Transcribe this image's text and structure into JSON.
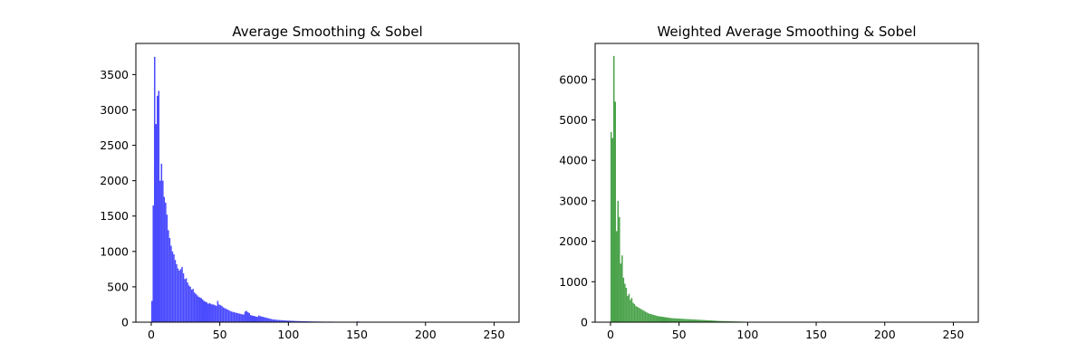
{
  "chart_data": [
    {
      "type": "bar",
      "title": "Average Smoothing & Sobel",
      "xlabel": "",
      "ylabel": "",
      "xlim": [
        -11.2,
        268.2
      ],
      "ylim": [
        0,
        3940
      ],
      "xticks": [
        0,
        50,
        100,
        150,
        200,
        250
      ],
      "yticks": [
        0,
        500,
        1000,
        1500,
        2000,
        2500,
        3000,
        3500
      ],
      "bar_color": "#4a4aff",
      "grid": false,
      "bins": {
        "start": 0,
        "width": 1,
        "counts": [
          300,
          1650,
          3750,
          2800,
          3200,
          3270,
          2000,
          2240,
          2000,
          1770,
          1690,
          1520,
          1300,
          1190,
          1080,
          1000,
          960,
          880,
          820,
          760,
          730,
          750,
          780,
          690,
          610,
          620,
          560,
          520,
          500,
          460,
          470,
          420,
          400,
          380,
          360,
          350,
          340,
          320,
          300,
          290,
          280,
          260,
          270,
          260,
          250,
          250,
          240,
          230,
          300,
          250,
          240,
          230,
          210,
          200,
          190,
          180,
          170,
          160,
          150,
          145,
          140,
          135,
          130,
          125,
          120,
          115,
          110,
          110,
          150,
          160,
          140,
          130,
          100,
          95,
          90,
          85,
          80,
          75,
          95,
          85,
          80,
          75,
          70,
          65,
          60,
          55,
          50,
          45,
          40,
          38,
          36,
          34,
          32,
          30,
          29,
          28,
          26,
          25,
          24,
          22,
          22,
          21,
          20,
          19,
          18,
          17,
          16,
          16,
          15,
          14,
          14,
          13,
          13,
          12,
          12,
          11,
          11,
          10,
          10,
          10,
          9,
          9,
          9,
          8,
          8,
          8,
          7,
          7,
          7,
          7,
          8,
          7,
          7,
          6,
          6,
          6,
          6,
          6,
          5,
          5,
          5,
          5,
          5,
          5,
          4,
          4,
          4,
          4,
          4,
          4,
          12,
          8,
          7,
          6,
          6,
          5,
          5,
          5,
          4,
          4,
          4,
          4,
          4,
          3,
          3,
          3,
          3,
          3,
          3,
          3,
          3,
          3,
          3,
          3,
          3,
          3,
          3,
          3,
          3,
          3,
          3,
          3,
          3,
          3,
          3,
          3,
          3,
          3,
          3,
          3,
          3,
          3,
          3,
          3,
          3,
          3,
          3,
          3,
          2,
          2,
          2,
          2,
          2,
          2,
          2,
          2,
          2,
          2,
          2,
          2,
          2,
          2,
          2,
          2,
          2,
          2,
          2,
          2,
          2,
          2,
          2,
          2,
          2,
          2,
          2,
          2,
          1,
          1,
          1,
          1,
          1,
          1,
          1,
          1,
          1,
          1,
          1,
          1,
          1,
          1,
          1,
          1,
          1,
          1,
          1,
          1,
          1,
          1,
          1,
          1,
          1,
          1,
          1,
          1,
          1,
          1,
          1,
          1,
          1,
          1,
          1,
          1,
          1
        ]
      }
    },
    {
      "type": "bar",
      "title": "Weighted Average Smoothing & Sobel",
      "xlabel": "",
      "ylabel": "",
      "xlim": [
        -11.2,
        268.2
      ],
      "ylim": [
        0,
        6890
      ],
      "xticks": [
        0,
        50,
        100,
        150,
        200,
        250
      ],
      "yticks": [
        0,
        1000,
        2000,
        3000,
        4000,
        5000,
        6000
      ],
      "bar_color": "#4ba34b",
      "grid": false,
      "bins": {
        "start": 0,
        "width": 1,
        "counts": [
          4700,
          4550,
          6580,
          5450,
          2250,
          3000,
          2600,
          1450,
          1650,
          1100,
          950,
          850,
          650,
          700,
          550,
          600,
          480,
          450,
          400,
          380,
          360,
          340,
          320,
          300,
          280,
          260,
          240,
          220,
          210,
          200,
          190,
          180,
          170,
          160,
          150,
          145,
          140,
          135,
          130,
          125,
          120,
          115,
          110,
          105,
          100,
          98,
          96,
          94,
          92,
          90,
          88,
          86,
          84,
          82,
          80,
          78,
          76,
          74,
          72,
          70,
          68,
          66,
          64,
          62,
          60,
          58,
          56,
          54,
          52,
          50,
          48,
          46,
          44,
          42,
          40,
          38,
          36,
          34,
          32,
          30,
          29,
          28,
          27,
          26,
          25,
          24,
          23,
          22,
          21,
          20,
          19,
          18,
          17,
          16,
          15,
          14,
          13,
          12,
          11,
          10,
          5,
          4,
          4,
          3,
          3,
          3,
          2,
          2,
          2,
          2,
          2,
          2,
          1,
          1,
          1,
          1,
          1,
          1,
          1,
          1,
          1,
          1,
          1,
          1,
          1,
          1,
          1,
          1,
          1,
          1,
          1,
          1,
          1,
          1,
          1,
          1,
          1,
          1,
          1,
          1,
          1,
          1,
          1,
          1,
          1,
          1,
          1,
          1,
          1,
          1,
          1,
          1,
          1,
          1,
          1,
          1,
          1,
          1,
          1,
          1,
          1,
          1,
          1,
          1,
          1,
          1,
          1,
          1,
          1,
          1,
          1,
          1,
          1,
          1,
          1,
          1,
          1,
          1,
          1,
          1,
          1,
          1,
          1,
          1,
          1,
          1,
          1,
          1,
          1,
          1,
          1,
          1,
          1,
          1,
          1,
          1,
          1,
          1,
          1,
          1,
          1,
          1,
          1,
          1,
          1,
          1,
          1,
          1,
          1,
          1,
          1,
          1,
          1,
          1,
          1,
          1,
          1,
          1,
          1,
          1,
          1,
          1,
          1,
          1,
          1,
          1,
          1,
          1,
          1,
          1,
          1,
          1,
          1,
          1,
          1,
          1,
          1,
          1,
          1,
          1,
          1,
          1,
          1,
          1,
          1,
          1,
          1,
          1,
          1,
          1,
          1,
          1,
          1,
          1,
          1,
          1
        ]
      }
    }
  ]
}
